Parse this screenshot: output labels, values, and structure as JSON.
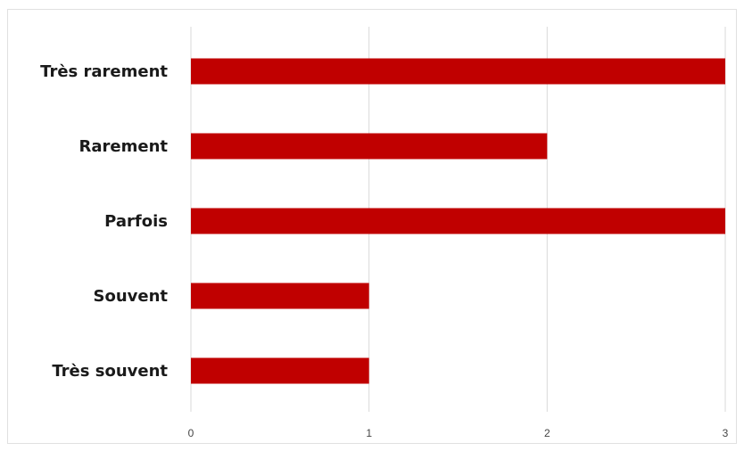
{
  "chart_data": {
    "type": "bar",
    "orientation": "horizontal",
    "title": "",
    "xlabel": "",
    "ylabel": "",
    "categories": [
      "Très rarement",
      "Rarement",
      "Parfois",
      "Souvent",
      "Très souvent"
    ],
    "values": [
      3,
      2,
      3,
      1,
      1
    ],
    "xlim": [
      0,
      3
    ],
    "xticks": [
      "0",
      "1",
      "2",
      "3"
    ],
    "grid": true,
    "legend": "none",
    "bar_color": "#C00000",
    "grid_color": "#d9d9d9"
  }
}
